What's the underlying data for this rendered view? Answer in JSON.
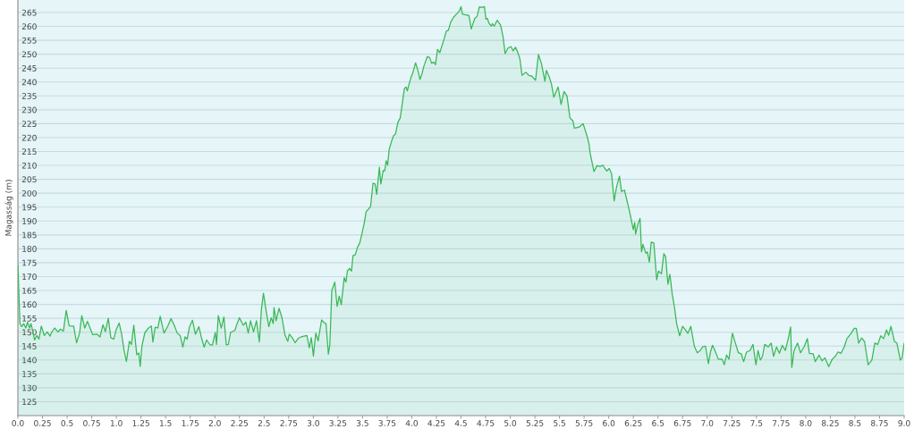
{
  "chart_data": {
    "type": "area",
    "ylabel": "Magasság (m)",
    "color": "#38b855",
    "x": [
      0.0,
      0.021,
      0.038,
      0.059,
      0.08,
      0.098,
      0.119,
      0.134,
      0.17,
      0.193,
      0.214,
      0.238,
      0.268,
      0.298,
      0.327,
      0.342,
      0.372,
      0.408,
      0.432,
      0.462,
      0.491,
      0.521,
      0.566,
      0.596,
      0.626,
      0.649,
      0.679,
      0.706,
      0.76,
      0.804,
      0.834,
      0.864,
      0.888,
      0.918,
      0.944,
      0.974,
      0.998,
      1.028,
      1.052,
      1.078,
      1.102,
      1.132,
      1.153,
      1.177,
      1.207,
      1.228,
      1.242,
      1.26,
      1.29,
      1.326,
      1.356,
      1.371,
      1.394,
      1.421,
      1.445,
      1.484,
      1.52,
      1.555,
      1.588,
      1.618,
      1.648,
      1.675,
      1.698,
      1.719,
      1.743,
      1.773,
      1.803,
      1.838,
      1.862,
      1.892,
      1.916,
      1.952,
      1.976,
      2.005,
      2.017,
      2.035,
      2.065,
      2.092,
      2.116,
      2.137,
      2.16,
      2.205,
      2.22,
      2.25,
      2.289,
      2.315,
      2.339,
      2.363,
      2.393,
      2.423,
      2.452,
      2.473,
      2.494,
      2.518,
      2.548,
      2.572,
      2.593,
      2.601,
      2.622,
      2.652,
      2.682,
      2.712,
      2.741,
      2.756,
      2.786,
      2.816,
      2.846,
      2.876,
      2.935,
      2.959,
      2.98,
      3.001,
      3.025,
      3.049,
      3.084,
      3.114,
      3.129,
      3.153,
      3.168,
      3.188,
      3.218,
      3.242,
      3.263,
      3.284,
      3.314,
      3.332,
      3.346,
      3.368,
      3.388,
      3.403,
      3.427,
      3.448,
      3.472,
      3.496,
      3.516,
      3.537,
      3.561,
      3.582,
      3.606,
      3.627,
      3.644,
      3.671,
      3.686,
      3.71,
      3.725,
      3.74,
      3.755,
      3.77,
      3.794,
      3.815,
      3.835,
      3.859,
      3.883,
      3.904,
      3.925,
      3.943,
      3.955,
      3.973,
      3.994,
      4.008,
      4.038,
      4.062,
      4.083,
      4.104,
      4.122,
      4.157,
      4.181,
      4.202,
      4.223,
      4.241,
      4.261,
      4.285,
      4.306,
      4.33,
      4.351,
      4.372,
      4.395,
      4.425,
      4.44,
      4.461,
      4.485,
      4.5,
      4.515,
      4.539,
      4.58,
      4.604,
      4.64,
      4.663,
      4.687,
      4.708,
      4.738,
      4.753,
      4.768,
      4.783,
      4.807,
      4.819,
      4.837,
      4.867,
      4.903,
      4.927,
      4.948,
      4.978,
      5.008,
      5.029,
      5.053,
      5.077,
      5.098,
      5.119,
      5.158,
      5.188,
      5.218,
      5.257,
      5.286,
      5.316,
      5.352,
      5.367,
      5.397,
      5.418,
      5.442,
      5.486,
      5.516,
      5.546,
      5.576,
      5.606,
      5.636,
      5.651,
      5.695,
      5.74,
      5.785,
      5.8,
      5.811,
      5.85,
      5.88,
      5.915,
      5.939,
      5.96,
      5.981,
      6.005,
      6.029,
      6.055,
      6.079,
      6.109,
      6.13,
      6.16,
      6.213,
      6.249,
      6.264,
      6.273,
      6.297,
      6.318,
      6.333,
      6.347,
      6.377,
      6.392,
      6.413,
      6.431,
      6.458,
      6.487,
      6.505,
      6.535,
      6.559,
      6.577,
      6.601,
      6.621,
      6.645,
      6.666,
      6.69,
      6.72,
      6.75,
      6.779,
      6.803,
      6.833,
      6.869,
      6.899,
      6.929,
      6.953,
      6.982,
      7.012,
      7.033,
      7.054,
      7.084,
      7.113,
      7.152,
      7.173,
      7.197,
      7.221,
      7.256,
      7.286,
      7.316,
      7.346,
      7.37,
      7.4,
      7.435,
      7.465,
      7.495,
      7.516,
      7.54,
      7.561,
      7.584,
      7.62,
      7.65,
      7.674,
      7.704,
      7.733,
      7.763,
      7.793,
      7.823,
      7.847,
      7.859,
      7.882,
      7.918,
      7.948,
      7.987,
      8.017,
      8.037,
      8.076,
      8.097,
      8.136,
      8.166,
      8.195,
      8.234,
      8.27,
      8.3,
      8.329,
      8.359,
      8.389,
      8.419,
      8.455,
      8.493,
      8.514,
      8.538,
      8.568,
      8.598,
      8.634,
      8.672,
      8.702,
      8.732,
      8.762,
      8.791,
      8.821,
      8.842,
      8.866,
      8.902,
      8.926,
      8.961,
      8.979,
      9.0
    ],
    "values": [
      174.2,
      153.1,
      152.0,
      153.1,
      151.5,
      153.6,
      151.5,
      153.1,
      147.2,
      148.8,
      147.5,
      152.2,
      148.8,
      150.1,
      148.6,
      149.9,
      151.5,
      150.1,
      151.1,
      150.4,
      157.8,
      152.3,
      152.2,
      146.2,
      149.6,
      156.0,
      151.5,
      153.9,
      149.1,
      149.3,
      148.3,
      152.7,
      150.2,
      155.0,
      148.0,
      147.5,
      150.9,
      153.3,
      149.6,
      143.5,
      139.5,
      146.7,
      145.6,
      152.5,
      141.9,
      142.5,
      137.7,
      145.1,
      149.9,
      151.5,
      152.2,
      146.5,
      151.8,
      151.5,
      155.7,
      149.7,
      152.0,
      154.9,
      152.5,
      149.7,
      148.8,
      144.6,
      148.3,
      147.5,
      152.0,
      154.3,
      149.3,
      152.0,
      148.3,
      144.6,
      147.2,
      145.4,
      145.4,
      149.9,
      145.6,
      156.0,
      151.5,
      155.5,
      145.4,
      145.6,
      149.9,
      150.7,
      152.5,
      155.2,
      152.5,
      153.6,
      149.7,
      154.1,
      150.1,
      154.1,
      146.5,
      158.3,
      164.0,
      158.3,
      152.0,
      155.2,
      153.1,
      158.9,
      154.1,
      158.6,
      155.2,
      149.0,
      146.7,
      149.3,
      148.0,
      146.2,
      147.8,
      148.3,
      148.8,
      144.4,
      148.0,
      141.4,
      149.7,
      146.9,
      154.4,
      153.3,
      153.1,
      142.1,
      145.6,
      165.1,
      168.0,
      159.3,
      163.0,
      159.9,
      169.7,
      168.0,
      172.0,
      172.9,
      172.0,
      177.5,
      177.9,
      180.5,
      182.1,
      185.8,
      189.0,
      193.4,
      194.3,
      195.3,
      203.6,
      203.3,
      199.6,
      209.3,
      203.3,
      208.2,
      208.0,
      211.7,
      210.1,
      215.7,
      218.6,
      220.7,
      221.3,
      225.5,
      227.1,
      232.4,
      237.7,
      238.2,
      236.8,
      239.3,
      241.9,
      243.0,
      246.9,
      244.2,
      240.9,
      243.0,
      245.6,
      249.1,
      248.8,
      246.7,
      247.2,
      246.2,
      251.7,
      250.6,
      253.0,
      255.7,
      258.3,
      258.6,
      261.5,
      263.3,
      263.9,
      264.7,
      265.7,
      267.1,
      264.4,
      264.2,
      263.9,
      259.1,
      262.9,
      263.6,
      267.1,
      266.8,
      267.1,
      262.6,
      262.9,
      261.2,
      260.1,
      261.0,
      260.1,
      262.2,
      260.4,
      256.2,
      250.2,
      252.3,
      252.7,
      251.2,
      252.5,
      250.6,
      248.3,
      242.4,
      243.5,
      242.4,
      242.1,
      240.6,
      249.9,
      246.7,
      240.3,
      244.2,
      241.7,
      239.3,
      234.5,
      238.2,
      231.9,
      236.6,
      235.0,
      227.1,
      226.0,
      223.4,
      223.7,
      225.0,
      219.9,
      217.6,
      214.4,
      207.8,
      209.9,
      209.6,
      210.1,
      208.9,
      208.0,
      208.9,
      207.0,
      197.2,
      202.2,
      206.1,
      200.6,
      201.1,
      193.2,
      186.9,
      189.5,
      185.3,
      189.0,
      190.9,
      178.9,
      181.6,
      178.4,
      178.9,
      175.2,
      182.4,
      182.1,
      168.8,
      172.0,
      171.0,
      178.2,
      177.3,
      167.3,
      170.8,
      163.6,
      159.3,
      153.0,
      148.7,
      152.1,
      150.8,
      149.6,
      152.1,
      145.0,
      142.6,
      143.4,
      144.7,
      145.0,
      138.7,
      142.9,
      145.3,
      142.9,
      140.3,
      140.3,
      138.3,
      141.8,
      140.3,
      149.6,
      146.1,
      142.6,
      142.2,
      139.4,
      142.9,
      143.4,
      145.6,
      138.3,
      143.4,
      140.0,
      141.3,
      145.6,
      144.7,
      146.1,
      141.3,
      144.7,
      142.4,
      145.3,
      143.4,
      147.7,
      151.9,
      137.3,
      143.4,
      146.1,
      142.6,
      145.0,
      147.7,
      142.4,
      142.2,
      139.4,
      141.8,
      139.7,
      140.8,
      137.6,
      140.3,
      141.3,
      142.9,
      142.4,
      144.5,
      147.7,
      149.3,
      151.4,
      151.4,
      146.1,
      147.9,
      146.6,
      138.3,
      140.0,
      146.1,
      145.6,
      148.7,
      147.7,
      150.8,
      148.9,
      152.1,
      146.6,
      146.1,
      140.0,
      140.8,
      146.1
    ],
    "xlim": [
      0,
      9
    ],
    "ylim": [
      120,
      269.5
    ],
    "xticks": [
      {
        "value": 0,
        "label": "0.0"
      },
      0.25,
      0.5,
      0.75,
      {
        "value": 1,
        "label": "1.0"
      },
      1.25,
      1.5,
      1.75,
      {
        "value": 2,
        "label": "2.0"
      },
      2.25,
      2.5,
      2.75,
      {
        "value": 3,
        "label": "3.0"
      },
      3.25,
      3.5,
      3.75,
      {
        "value": 4,
        "label": "4.0"
      },
      4.25,
      4.5,
      4.75,
      {
        "value": 5,
        "label": "5.0"
      },
      5.25,
      5.5,
      5.75,
      {
        "value": 6,
        "label": "6.0"
      },
      6.25,
      6.5,
      6.75,
      {
        "value": 7,
        "label": "7.0"
      },
      7.25,
      7.5,
      7.75,
      {
        "value": 8,
        "label": "8.0"
      },
      8.25,
      8.5,
      8.75,
      {
        "value": 9,
        "label": "9.0"
      }
    ],
    "yticks": [
      125,
      130,
      135,
      140,
      145,
      150,
      155,
      160,
      165,
      170,
      175,
      180,
      185,
      190,
      195,
      200,
      205,
      210,
      215,
      220,
      225,
      230,
      235,
      240,
      245,
      250,
      255,
      260,
      265
    ],
    "grid": "y"
  }
}
